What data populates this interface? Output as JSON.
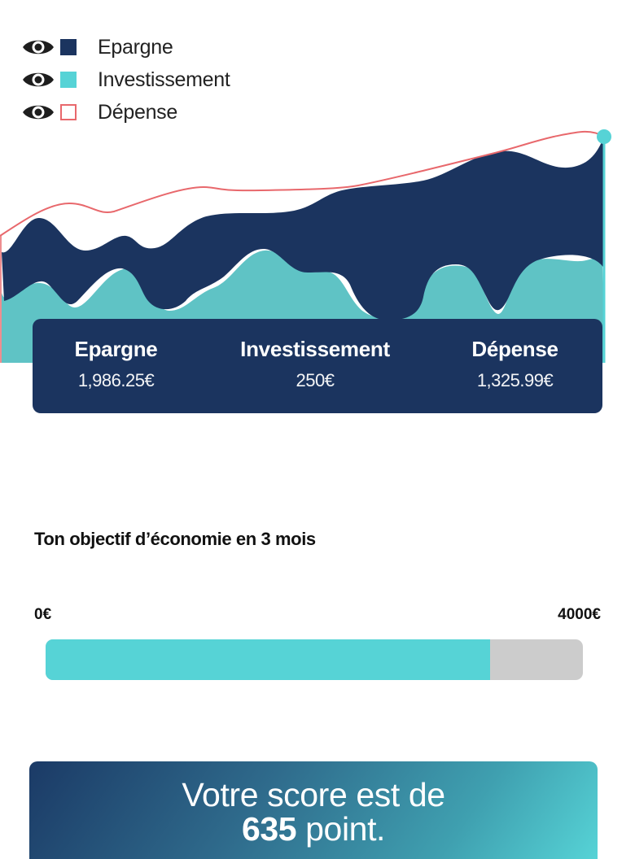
{
  "legend": [
    {
      "label": "Epargne",
      "swatch": "filled-navy",
      "color": "#1b345f",
      "icon": "eye-icon"
    },
    {
      "label": "Investissement",
      "swatch": "filled-teal",
      "color": "#56d3d6",
      "icon": "eye-icon"
    },
    {
      "label": "Dépense",
      "swatch": "outline-red",
      "color": "#e8686c",
      "icon": "eye-icon"
    }
  ],
  "summary": {
    "epargne": {
      "title": "Epargne",
      "value": "1,986.25€"
    },
    "investissement": {
      "title": "Investissement",
      "value": "250€"
    },
    "depense": {
      "title": "Dépense",
      "value": "1,325.99€"
    }
  },
  "goal": {
    "title": "Ton objectif d’économie en 3 mois",
    "min_label": "0€",
    "max_label": "4000€",
    "progress_fraction": 0.827
  },
  "score": {
    "line1": "Votre score est de",
    "points": "635",
    "suffix": " point."
  },
  "colors": {
    "navy": "#1b345f",
    "teal": "#56d3d6",
    "red": "#e8686c"
  },
  "icons": {
    "visibility": "eye-icon"
  }
}
